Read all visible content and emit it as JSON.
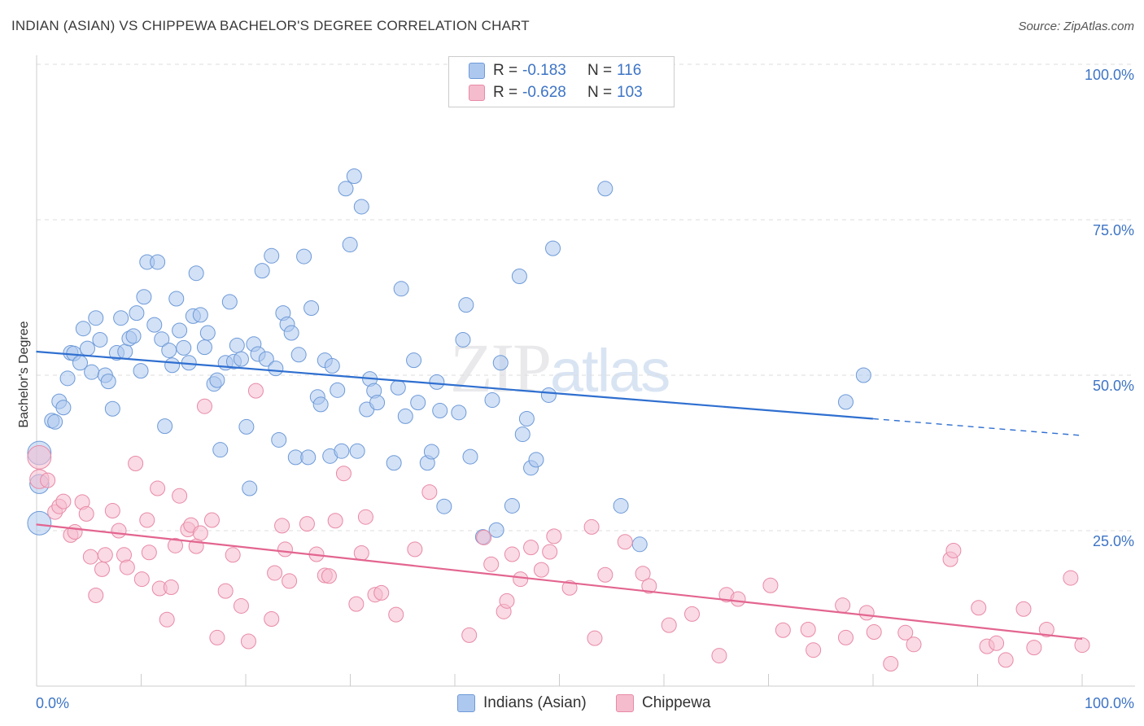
{
  "header": {
    "title": "INDIAN (ASIAN) VS CHIPPEWA BACHELOR'S DEGREE CORRELATION CHART",
    "source": "Source: ZipAtlas.com"
  },
  "watermark": {
    "zip": "ZIP",
    "atlas": "atlas"
  },
  "legend": {
    "series": [
      {
        "r_label": "R =",
        "r_value": "-0.183",
        "n_label": "N =",
        "n_value": "116"
      },
      {
        "r_label": "R =",
        "r_value": "-0.628",
        "n_label": "N =",
        "n_value": "103"
      }
    ]
  },
  "bottom_legend": {
    "items": [
      "Indians (Asian)",
      "Chippewa"
    ]
  },
  "colors": {
    "blue_fill": "#adc8ef",
    "blue_stroke": "#6e9ad8",
    "blue_line": "#2f6fd0",
    "pink_fill": "#f5bccd",
    "pink_stroke": "#e88aa7",
    "pink_line": "#e36590",
    "grid": "#dddddd",
    "tick_text": "#3d74c5"
  },
  "chart_data": {
    "type": "scatter",
    "title": "INDIAN (ASIAN) VS CHIPPEWA BACHELOR'S DEGREE CORRELATION CHART",
    "xlabel": "",
    "ylabel": "Bachelor's Degree",
    "xlim": [
      0,
      100
    ],
    "ylim": [
      0,
      100
    ],
    "x_tick_labels": [
      "0.0%",
      "100.0%"
    ],
    "y_tick_labels": [
      "25.0%",
      "50.0%",
      "75.0%",
      "100.0%"
    ],
    "y_ticks": [
      25,
      50,
      75,
      100
    ],
    "grid": true,
    "series": [
      {
        "name": "Indians (Asian)",
        "r": -0.183,
        "n": 116,
        "trend": {
          "x0": 0,
          "y0": 53.8,
          "x1": 80,
          "y1": 43.0,
          "dash_to_x": 100,
          "dash_to_y": 40.3
        },
        "points": [
          [
            0.3,
            37.5,
            1.6
          ],
          [
            0.3,
            32.5,
            1.3
          ],
          [
            0.3,
            26.2,
            1.6
          ],
          [
            1.5,
            42.7,
            1.0
          ],
          [
            1.8,
            42.5,
            1.0
          ],
          [
            2.2,
            45.8,
            1.0
          ],
          [
            2.6,
            44.8,
            1.0
          ],
          [
            3.0,
            49.5,
            1.0
          ],
          [
            3.3,
            53.6,
            1.0
          ],
          [
            3.6,
            53.5,
            1.0
          ],
          [
            4.2,
            52.0,
            1.0
          ],
          [
            4.5,
            57.5,
            1.0
          ],
          [
            4.9,
            54.3,
            1.0
          ],
          [
            5.3,
            50.5,
            1.0
          ],
          [
            5.7,
            59.2,
            1.0
          ],
          [
            6.1,
            55.7,
            1.0
          ],
          [
            6.6,
            50.0,
            1.0
          ],
          [
            6.9,
            49.0,
            1.0
          ],
          [
            7.3,
            44.6,
            1.0
          ],
          [
            7.7,
            53.6,
            1.0
          ],
          [
            8.1,
            59.2,
            1.0
          ],
          [
            8.5,
            53.8,
            1.0
          ],
          [
            8.9,
            55.9,
            1.0
          ],
          [
            9.3,
            56.3,
            1.0
          ],
          [
            9.6,
            60.0,
            1.0
          ],
          [
            10.0,
            50.7,
            1.0
          ],
          [
            10.3,
            62.6,
            1.0
          ],
          [
            10.6,
            68.2,
            1.0
          ],
          [
            11.3,
            58.1,
            1.0
          ],
          [
            11.6,
            68.2,
            1.0
          ],
          [
            12.0,
            55.8,
            1.0
          ],
          [
            12.3,
            41.8,
            1.0
          ],
          [
            12.7,
            54.0,
            1.0
          ],
          [
            13.0,
            51.6,
            1.0
          ],
          [
            13.4,
            62.3,
            1.0
          ],
          [
            13.7,
            57.2,
            1.0
          ],
          [
            14.1,
            54.4,
            1.0
          ],
          [
            14.6,
            52.0,
            1.0
          ],
          [
            15.0,
            59.5,
            1.0
          ],
          [
            15.3,
            66.4,
            1.0
          ],
          [
            15.7,
            59.7,
            1.0
          ],
          [
            16.1,
            54.5,
            1.0
          ],
          [
            16.4,
            56.8,
            1.0
          ],
          [
            17.0,
            48.6,
            1.0
          ],
          [
            17.3,
            49.2,
            1.0
          ],
          [
            17.6,
            38.0,
            1.0
          ],
          [
            18.1,
            52.0,
            1.0
          ],
          [
            18.5,
            61.8,
            1.0
          ],
          [
            18.9,
            52.2,
            1.0
          ],
          [
            19.2,
            54.8,
            1.0
          ],
          [
            19.6,
            52.6,
            1.0
          ],
          [
            20.1,
            41.7,
            1.0
          ],
          [
            20.4,
            31.8,
            1.0
          ],
          [
            20.8,
            55.0,
            1.0
          ],
          [
            21.2,
            53.4,
            1.0
          ],
          [
            21.6,
            66.8,
            1.0
          ],
          [
            22.0,
            52.6,
            1.0
          ],
          [
            22.5,
            69.2,
            1.0
          ],
          [
            22.9,
            51.1,
            1.0
          ],
          [
            23.2,
            39.6,
            1.0
          ],
          [
            23.6,
            60.0,
            1.0
          ],
          [
            24.0,
            58.2,
            1.0
          ],
          [
            24.4,
            56.8,
            1.0
          ],
          [
            24.8,
            36.8,
            1.0
          ],
          [
            25.1,
            53.3,
            1.0
          ],
          [
            25.6,
            69.1,
            1.0
          ],
          [
            26.0,
            36.8,
            1.0
          ],
          [
            26.3,
            60.8,
            1.0
          ],
          [
            26.9,
            46.5,
            1.0
          ],
          [
            27.2,
            45.3,
            1.0
          ],
          [
            27.6,
            52.4,
            1.0
          ],
          [
            28.1,
            37.0,
            1.0
          ],
          [
            28.3,
            51.5,
            1.0
          ],
          [
            28.8,
            47.6,
            1.0
          ],
          [
            29.2,
            37.8,
            1.0
          ],
          [
            29.6,
            80.0,
            1.0
          ],
          [
            30.0,
            71.0,
            1.0
          ],
          [
            30.4,
            82.0,
            1.0
          ],
          [
            30.7,
            37.8,
            1.0
          ],
          [
            31.1,
            77.1,
            1.0
          ],
          [
            31.6,
            44.5,
            1.0
          ],
          [
            31.9,
            49.4,
            1.0
          ],
          [
            32.3,
            47.5,
            1.0
          ],
          [
            32.6,
            45.6,
            1.0
          ],
          [
            34.2,
            35.9,
            1.0
          ],
          [
            34.6,
            48.0,
            1.0
          ],
          [
            34.9,
            63.9,
            1.0
          ],
          [
            35.3,
            43.4,
            1.0
          ],
          [
            36.1,
            52.4,
            1.0
          ],
          [
            36.5,
            45.6,
            1.0
          ],
          [
            37.4,
            35.9,
            1.0
          ],
          [
            37.8,
            37.7,
            1.0
          ],
          [
            38.3,
            48.9,
            1.0
          ],
          [
            38.6,
            44.3,
            1.0
          ],
          [
            39.0,
            28.9,
            1.0
          ],
          [
            40.4,
            44.0,
            1.0
          ],
          [
            40.8,
            55.7,
            1.0
          ],
          [
            41.1,
            61.3,
            1.0
          ],
          [
            41.5,
            36.9,
            1.0
          ],
          [
            42.7,
            24.0,
            1.0
          ],
          [
            43.6,
            46.0,
            1.0
          ],
          [
            44.0,
            25.1,
            1.0
          ],
          [
            44.4,
            52.0,
            1.0
          ],
          [
            45.5,
            29.0,
            1.0
          ],
          [
            46.2,
            65.9,
            1.0
          ],
          [
            46.5,
            40.5,
            1.0
          ],
          [
            46.9,
            43.0,
            1.0
          ],
          [
            47.3,
            35.1,
            1.0
          ],
          [
            47.8,
            36.4,
            1.0
          ],
          [
            49.0,
            46.8,
            1.0
          ],
          [
            49.4,
            70.4,
            1.0
          ],
          [
            54.4,
            80.0,
            1.0
          ],
          [
            55.9,
            29.0,
            1.0
          ],
          [
            57.7,
            22.8,
            1.0
          ],
          [
            77.4,
            45.7,
            1.0
          ],
          [
            79.1,
            50.0,
            1.0
          ]
        ]
      },
      {
        "name": "Chippewa",
        "r": -0.628,
        "n": 103,
        "trend": {
          "x0": 0,
          "y0": 26.0,
          "x1": 100,
          "y1": 7.6
        },
        "points": [
          [
            0.3,
            36.8,
            1.6
          ],
          [
            0.3,
            33.3,
            1.3
          ],
          [
            1.1,
            33.1,
            1.0
          ],
          [
            1.8,
            28.0,
            1.0
          ],
          [
            2.2,
            28.9,
            1.0
          ],
          [
            2.6,
            29.7,
            1.0
          ],
          [
            3.3,
            24.3,
            1.0
          ],
          [
            3.7,
            24.8,
            1.0
          ],
          [
            4.4,
            29.6,
            1.0
          ],
          [
            4.8,
            27.7,
            1.0
          ],
          [
            5.2,
            20.8,
            1.0
          ],
          [
            5.7,
            14.6,
            1.0
          ],
          [
            6.3,
            18.8,
            1.0
          ],
          [
            6.6,
            21.1,
            1.0
          ],
          [
            7.3,
            28.2,
            1.0
          ],
          [
            7.9,
            25.0,
            1.0
          ],
          [
            8.4,
            21.1,
            1.0
          ],
          [
            8.7,
            19.1,
            1.0
          ],
          [
            9.5,
            35.8,
            1.0
          ],
          [
            10.1,
            17.2,
            1.0
          ],
          [
            10.6,
            26.7,
            1.0
          ],
          [
            10.8,
            21.5,
            1.0
          ],
          [
            11.6,
            31.8,
            1.0
          ],
          [
            11.8,
            15.7,
            1.0
          ],
          [
            12.5,
            10.7,
            1.0
          ],
          [
            12.9,
            15.9,
            1.0
          ],
          [
            13.3,
            22.6,
            1.0
          ],
          [
            13.7,
            30.6,
            1.0
          ],
          [
            14.5,
            25.2,
            1.0
          ],
          [
            14.8,
            25.9,
            1.0
          ],
          [
            15.3,
            22.5,
            1.0
          ],
          [
            15.7,
            24.6,
            1.0
          ],
          [
            16.1,
            45.0,
            1.0
          ],
          [
            16.8,
            26.7,
            1.0
          ],
          [
            17.3,
            7.8,
            1.0
          ],
          [
            18.1,
            15.3,
            1.0
          ],
          [
            18.8,
            21.1,
            1.0
          ],
          [
            19.6,
            12.9,
            1.0
          ],
          [
            20.3,
            7.2,
            1.0
          ],
          [
            21.0,
            47.5,
            1.0
          ],
          [
            22.5,
            10.8,
            1.0
          ],
          [
            22.8,
            18.2,
            1.0
          ],
          [
            23.5,
            25.8,
            1.0
          ],
          [
            23.8,
            22.0,
            1.0
          ],
          [
            24.2,
            16.9,
            1.0
          ],
          [
            25.9,
            26.1,
            1.0
          ],
          [
            26.8,
            21.2,
            1.0
          ],
          [
            27.6,
            17.8,
            1.0
          ],
          [
            28.0,
            17.7,
            1.0
          ],
          [
            28.6,
            26.6,
            1.0
          ],
          [
            29.4,
            34.2,
            1.0
          ],
          [
            30.6,
            13.2,
            1.0
          ],
          [
            31.1,
            21.4,
            1.0
          ],
          [
            31.5,
            27.2,
            1.0
          ],
          [
            32.4,
            14.7,
            1.0
          ],
          [
            33.0,
            15.0,
            1.0
          ],
          [
            34.4,
            11.5,
            1.0
          ],
          [
            36.2,
            22.0,
            1.0
          ],
          [
            37.6,
            31.2,
            1.0
          ],
          [
            41.4,
            8.2,
            1.0
          ],
          [
            42.8,
            23.9,
            1.0
          ],
          [
            43.5,
            19.6,
            1.0
          ],
          [
            44.7,
            12.0,
            1.0
          ],
          [
            45.0,
            13.7,
            1.0
          ],
          [
            45.5,
            21.2,
            1.0
          ],
          [
            46.3,
            17.2,
            1.0
          ],
          [
            47.3,
            22.3,
            1.0
          ],
          [
            48.3,
            18.7,
            1.0
          ],
          [
            49.1,
            21.6,
            1.0
          ],
          [
            49.5,
            24.1,
            1.0
          ],
          [
            51.0,
            15.8,
            1.0
          ],
          [
            53.1,
            25.6,
            1.0
          ],
          [
            53.4,
            7.7,
            1.0
          ],
          [
            54.4,
            17.9,
            1.0
          ],
          [
            56.3,
            23.2,
            1.0
          ],
          [
            58.0,
            18.1,
            1.0
          ],
          [
            58.6,
            16.1,
            1.0
          ],
          [
            60.5,
            9.8,
            1.0
          ],
          [
            62.7,
            11.6,
            1.0
          ],
          [
            65.3,
            4.9,
            1.0
          ],
          [
            66.0,
            14.7,
            1.0
          ],
          [
            67.1,
            14.0,
            1.0
          ],
          [
            70.2,
            16.2,
            1.0
          ],
          [
            71.4,
            9.0,
            1.0
          ],
          [
            73.8,
            9.1,
            1.0
          ],
          [
            74.3,
            5.8,
            1.0
          ],
          [
            77.1,
            13.0,
            1.0
          ],
          [
            77.4,
            7.8,
            1.0
          ],
          [
            79.4,
            11.8,
            1.0
          ],
          [
            80.1,
            8.7,
            1.0
          ],
          [
            81.7,
            3.6,
            1.0
          ],
          [
            83.1,
            8.6,
            1.0
          ],
          [
            83.9,
            6.7,
            1.0
          ],
          [
            87.4,
            20.4,
            1.0
          ],
          [
            87.7,
            21.8,
            1.0
          ],
          [
            90.1,
            12.6,
            1.0
          ],
          [
            90.9,
            6.4,
            1.0
          ],
          [
            91.8,
            6.9,
            1.0
          ],
          [
            92.7,
            4.2,
            1.0
          ],
          [
            94.4,
            12.4,
            1.0
          ],
          [
            95.4,
            6.2,
            1.0
          ],
          [
            96.6,
            9.1,
            1.0
          ],
          [
            98.9,
            17.4,
            1.0
          ],
          [
            100.0,
            6.6,
            1.0
          ]
        ]
      }
    ]
  }
}
